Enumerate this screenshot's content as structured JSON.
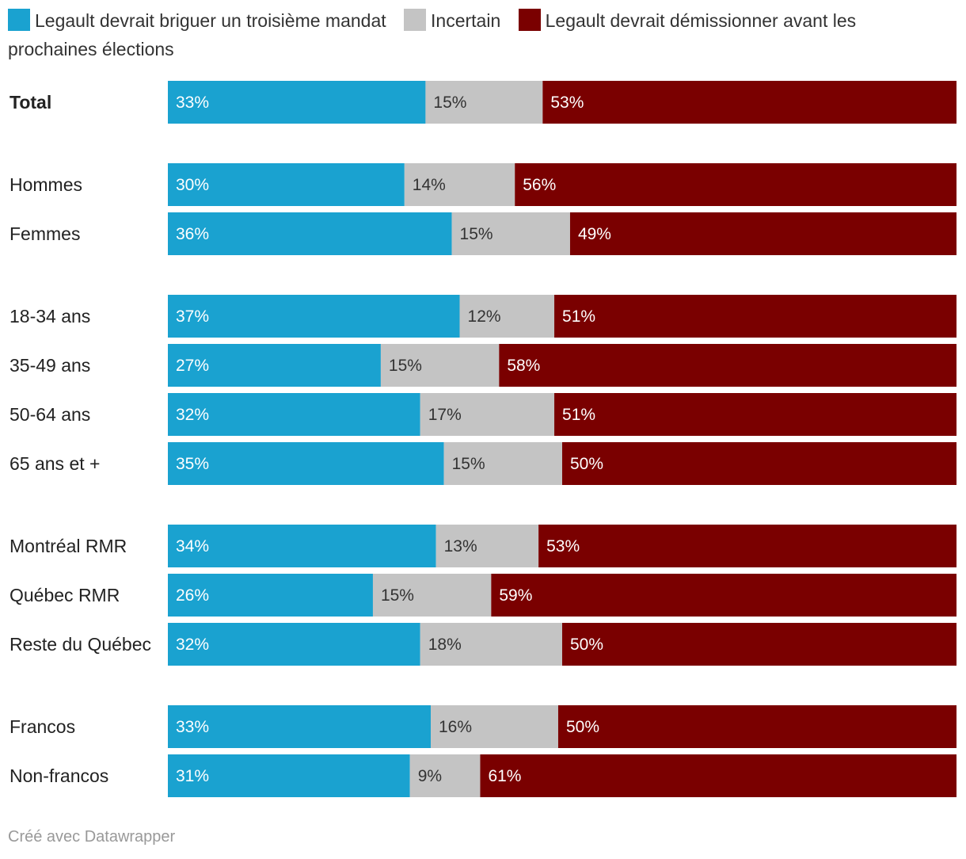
{
  "colors": {
    "relection": "#1aa2d0",
    "incertain": "#c4c4c4",
    "demission": "#7a0000",
    "label_light": "#ffffff",
    "label_dark": "#333333"
  },
  "legend": {
    "items": [
      {
        "label": "Legault devrait briguer un troisième mandat",
        "color": "#1aa2d0"
      },
      {
        "label": "Incertain",
        "color": "#c4c4c4"
      },
      {
        "label": "Legault devrait démissionner avant les prochaines élections",
        "color": "#7a0000"
      }
    ]
  },
  "chart_data": {
    "type": "bar",
    "orientation": "horizontal",
    "stacked": true,
    "series": [
      {
        "name": "Legault devrait briguer un troisième mandat",
        "values": [
          33,
          30,
          36,
          37,
          27,
          32,
          35,
          34,
          26,
          32,
          33,
          31
        ]
      },
      {
        "name": "Incertain",
        "values": [
          15,
          14,
          15,
          12,
          15,
          17,
          15,
          13,
          15,
          18,
          16,
          9
        ]
      },
      {
        "name": "Legault devrait démissionner avant les prochaines élections",
        "values": [
          53,
          56,
          49,
          51,
          58,
          51,
          50,
          53,
          59,
          50,
          50,
          61
        ]
      }
    ],
    "categories": [
      "Total",
      "Hommes",
      "Femmes",
      "18-34 ans",
      "35-49 ans",
      "50-64 ans",
      "65 ans et +",
      "Montréal RMR",
      "Québec RMR",
      "Reste du Québec",
      "Francos",
      "Non-francos"
    ],
    "groups": [
      [
        0
      ],
      [
        1,
        2
      ],
      [
        3,
        4,
        5,
        6
      ],
      [
        7,
        8,
        9
      ],
      [
        10,
        11
      ]
    ],
    "bold_categories": [
      "Total"
    ],
    "value_suffix": "%",
    "xlim": [
      0,
      100
    ]
  },
  "footer": {
    "credit": "Créé avec Datawrapper"
  }
}
